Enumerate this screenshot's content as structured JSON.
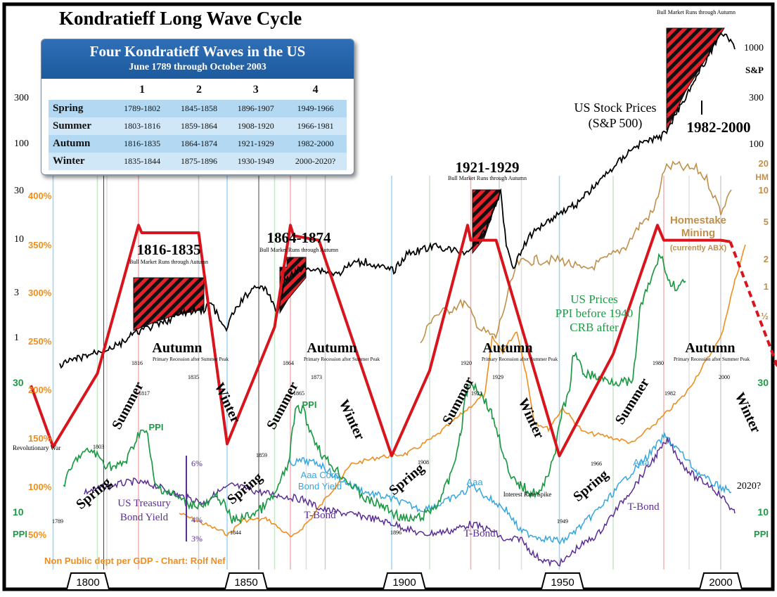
{
  "chart_data": {
    "type": "line",
    "title": "Kondratieff Long Wave Cycle",
    "x_ticks": [
      "1800",
      "1850",
      "1900",
      "1950",
      "2000"
    ],
    "xlim": [
      1780,
      2010
    ],
    "table": {
      "title": "Four Kondratieff Waves in the US",
      "subtitle": "June 1789 through October 2003",
      "columns": [
        "1",
        "2",
        "3",
        "4"
      ],
      "rows": [
        {
          "season": "Spring",
          "values": [
            "1789-1802",
            "1845-1858",
            "1896-1907",
            "1949-1966"
          ]
        },
        {
          "season": "Summer",
          "values": [
            "1803-1816",
            "1859-1864",
            "1908-1920",
            "1966-1981"
          ]
        },
        {
          "season": "Autumn",
          "values": [
            "1816-1835",
            "1864-1874",
            "1921-1929",
            "1982-2000"
          ]
        },
        {
          "season": "Winter",
          "values": [
            "1835-1844",
            "1875-1896",
            "1930-1949",
            "2000-2020?"
          ]
        }
      ]
    },
    "axes": {
      "sp_left": [
        "300",
        "100",
        "30",
        "10",
        "3",
        "1"
      ],
      "sp_right": [
        "1000",
        "300",
        "100"
      ],
      "sp_right_label": "S&P",
      "debt_left": [
        "400%",
        "350%",
        "300%",
        "250%",
        "200%",
        "150%",
        "100%",
        "50%"
      ],
      "ppi_left": [
        "30",
        "10"
      ],
      "ppi_left_label": "PPI",
      "ppi_right": [
        "30",
        "10"
      ],
      "ppi_right_label": "PPI",
      "hm_right": [
        "20",
        "10",
        "5",
        "2",
        "1",
        "½"
      ],
      "hm_right_label": "HM",
      "bond_axis": [
        "6%",
        "4%",
        "3%"
      ]
    },
    "bull_markets": [
      {
        "label": "1816-1835",
        "note": "Bull Market Runs through Autumn"
      },
      {
        "label": "1864-1874",
        "note": "Bull Market Runs through Autumn"
      },
      {
        "label": "1921-1929",
        "note": "Bull Market Runs through Autumn"
      },
      {
        "label": "1982-2000",
        "note": "Bull Market Runs through Autumn"
      }
    ],
    "wave_phases": [
      "Spring",
      "Summer",
      "Autumn",
      "Winter"
    ],
    "wave_peaks": [
      {
        "year": "1816",
        "sub": "1817",
        "end": "1835",
        "note": "Primary Recession after Summer Peak"
      },
      {
        "year": "1864",
        "sub": "1865",
        "end": "1873",
        "note": "Primary Recession after Summer Peak"
      },
      {
        "year": "1920",
        "sub": "1921",
        "end": "1929",
        "note": "Primary Recession after Summer Peak"
      },
      {
        "year": "1980",
        "sub": "1982",
        "end": "2000",
        "note": "Primary Recession after Summer Peak"
      }
    ],
    "wave_troughs": [
      "1789",
      "1844",
      "1896",
      "1949"
    ],
    "wave_starts": [
      "1803",
      "1859",
      "1908",
      "1966"
    ],
    "kwave": {
      "x": [
        1782,
        1789,
        1803,
        1816,
        1817,
        1835,
        1844,
        1859,
        1864,
        1865,
        1873,
        1896,
        1908,
        1920,
        1921,
        1929,
        1949,
        1966,
        1980,
        1982,
        2000,
        2003
      ],
      "y": [
        83,
        42,
        91,
        190,
        185,
        185,
        44,
        122,
        190,
        183,
        180,
        36,
        93,
        190,
        180,
        180,
        36,
        104,
        190,
        180,
        180,
        179
      ],
      "forecast": {
        "x": [
          2003,
          2020
        ],
        "y": [
          179,
          88
        ]
      }
    },
    "series": [
      {
        "name": "US Stock Prices (S&P 500)",
        "color": "#000000",
        "label": "US Stock Prices\n(S&P 500)"
      },
      {
        "name": "Homestake Mining (currently ABX)",
        "color": "#c0904a",
        "label": "Homestake\nMining\n(currently ABX)"
      },
      {
        "name": "US Prices PPI before 1940 CRB after",
        "color": "#1e9a46",
        "label": "US Prices\nPPI before 1940\nCRB after"
      },
      {
        "name": "PPI",
        "color": "#1e9a46",
        "label": "PPI"
      },
      {
        "name": "US Treasury Bond Yield",
        "color": "#5a2e96",
        "label": "US Treasury\nBond Yield"
      },
      {
        "name": "Aaa Corp Bond Yield",
        "color": "#35a6e0",
        "label": "Aaa Corp\nBond Yield"
      },
      {
        "name": "Non Public dept per GDP",
        "color": "#ef8e1e",
        "label": "Non Public dept per GDP - Chart: Rolf Nef"
      }
    ],
    "annotations": {
      "revolutionary_war": "Revolutionary War",
      "aaa": "Aaa",
      "t_bond": "T-Bond",
      "interest_rate_spike": "Interest Rate Spike",
      "year_2020": "2020?"
    }
  }
}
